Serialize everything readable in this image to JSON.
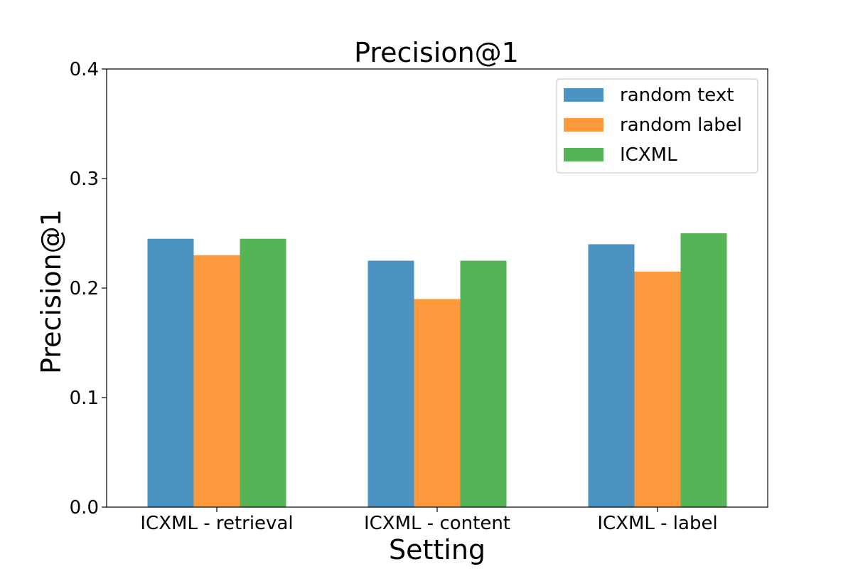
{
  "chart_data": {
    "type": "bar",
    "title": "Precision@1",
    "xlabel": "Setting",
    "ylabel": "Precision@1",
    "categories": [
      "ICXML - retrieval",
      "ICXML - content",
      "ICXML - label"
    ],
    "series": [
      {
        "name": "random text",
        "color": "#4c92c3",
        "values": [
          0.245,
          0.225,
          0.24
        ]
      },
      {
        "name": "random label",
        "color": "#ff993e",
        "values": [
          0.23,
          0.19,
          0.215
        ]
      },
      {
        "name": "ICXML",
        "color": "#56b356",
        "values": [
          0.245,
          0.225,
          0.25
        ]
      }
    ],
    "ylim": [
      0,
      0.4
    ],
    "yticks": [
      "0.0",
      "0.1",
      "0.2",
      "0.3",
      "0.4"
    ],
    "ytick_values": [
      0,
      0.1,
      0.2,
      0.3,
      0.4
    ],
    "legend_position": "top-right",
    "grid": false
  }
}
